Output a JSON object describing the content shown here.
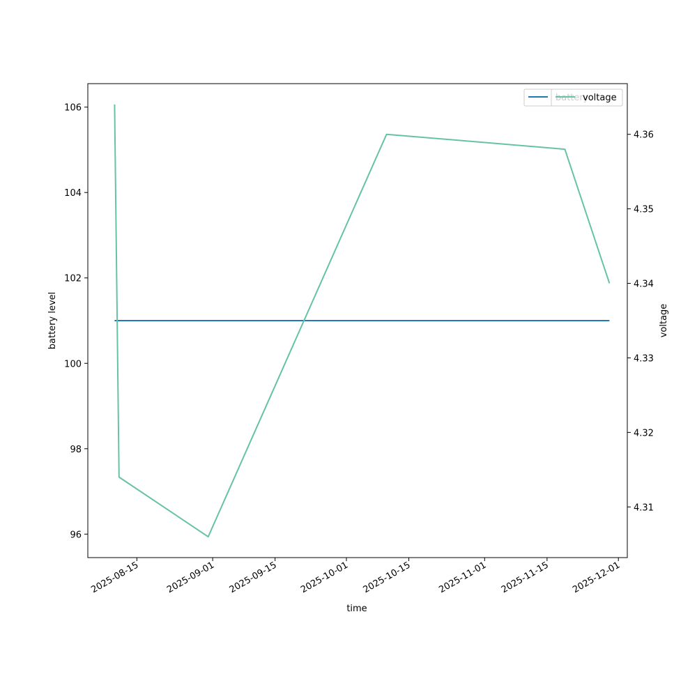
{
  "chart_data": {
    "type": "line",
    "xlabel": "time",
    "ylabel_left": "battery level",
    "ylabel_right": "voltage",
    "x_ticks": [
      "2025-08-15",
      "2025-09-01",
      "2025-09-15",
      "2025-10-01",
      "2025-10-15",
      "2025-11-01",
      "2025-11-15",
      "2025-12-01"
    ],
    "x_range": [
      "2025-08-04",
      "2025-12-03"
    ],
    "y_left_ticks": [
      96,
      98,
      100,
      102,
      104,
      106
    ],
    "y_left_range": [
      95.45,
      106.55
    ],
    "y_right_ticks": [
      4.31,
      4.32,
      4.33,
      4.34,
      4.35,
      4.36
    ],
    "y_right_range": [
      4.3032,
      4.3668
    ],
    "legend_placement": "top-right",
    "grid": false,
    "series": [
      {
        "name": "battery",
        "axis": "left",
        "color": "#1f77b4",
        "points": [
          [
            "2025-08-10",
            101
          ],
          [
            "2025-11-29",
            101
          ]
        ]
      },
      {
        "name": "voltage",
        "axis": "right",
        "color": "#66c2a5",
        "points": [
          [
            "2025-08-10",
            4.364
          ],
          [
            "2025-08-11",
            4.314
          ],
          [
            "2025-08-31",
            4.306
          ],
          [
            "2025-10-10",
            4.36
          ],
          [
            "2025-11-19",
            4.358
          ],
          [
            "2025-11-29",
            4.34
          ]
        ]
      }
    ]
  }
}
